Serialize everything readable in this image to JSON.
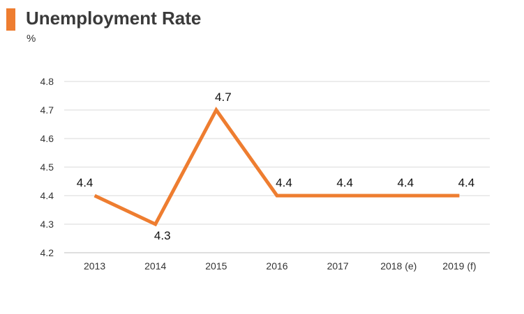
{
  "header": {
    "title": "Unemployment Rate",
    "unit": "%",
    "accent_color": "#ee7d30"
  },
  "chart_data": {
    "type": "line",
    "title": "Unemployment Rate",
    "ylabel": "%",
    "xlabel": "",
    "categories": [
      "2013",
      "2014",
      "2015",
      "2016",
      "2017",
      "2018 (e)",
      "2019 (f)"
    ],
    "series": [
      {
        "values": [
          4.4,
          4.3,
          4.7,
          4.4,
          4.4,
          4.4,
          4.4
        ],
        "color": "#ee7d30"
      }
    ],
    "ylim": [
      4.2,
      4.8
    ],
    "yticks": [
      "4.2",
      "4.3",
      "4.4",
      "4.5",
      "4.6",
      "4.7",
      "4.8"
    ],
    "grid": true,
    "data_labels": [
      "4.4",
      "4.3",
      "4.7",
      "4.4",
      "4.4",
      "4.4",
      "4.4"
    ],
    "legend": "none"
  }
}
